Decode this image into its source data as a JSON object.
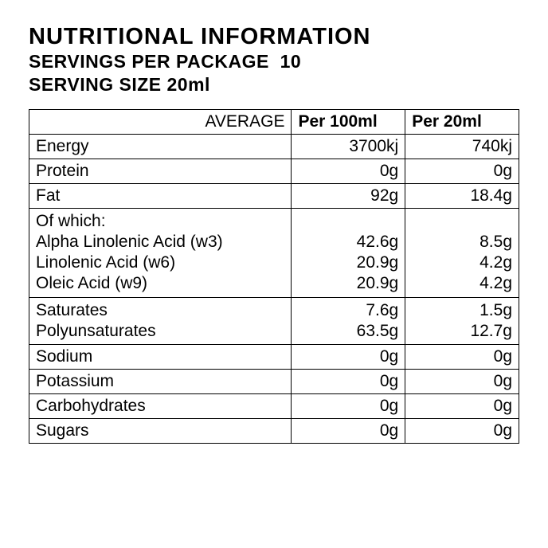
{
  "header": {
    "title": "NUTRITIONAL INFORMATION",
    "servings_per_package_label": "SERVINGS PER PACKAGE",
    "servings_per_package_value": "10",
    "serving_size_label": "SERVING SIZE",
    "serving_size_value": "20ml"
  },
  "columns": {
    "average": "AVERAGE",
    "per100": "Per 100ml",
    "per20": "Per 20ml"
  },
  "rows": [
    {
      "label": "Energy",
      "per100": "3700kj",
      "per20": "740kj"
    },
    {
      "label": "Protein",
      "per100": "0g",
      "per20": "0g"
    },
    {
      "label": "Fat",
      "per100": "92g",
      "per20": "18.4g"
    },
    {
      "label": "Of which:\nAlpha Linolenic Acid (w3)\nLinolenic Acid (w6)\nOleic Acid (w9)",
      "per100": "\n42.6g\n20.9g\n20.9g",
      "per20": "\n8.5g\n4.2g\n4.2g"
    },
    {
      "label": "Saturates\nPolyunsaturates",
      "per100": "7.6g\n63.5g",
      "per20": "1.5g\n12.7g"
    },
    {
      "label": "Sodium",
      "per100": "0g",
      "per20": "0g"
    },
    {
      "label": "Potassium",
      "per100": "0g",
      "per20": "0g"
    },
    {
      "label": "Carbohydrates",
      "per100": "0g",
      "per20": "0g"
    },
    {
      "label": "Sugars",
      "per100": "0g",
      "per20": "0g"
    }
  ],
  "style": {
    "background_color": "#ffffff",
    "text_color": "#000000",
    "border_color": "#000000",
    "title_fontsize": 29,
    "subtitle_fontsize": 23,
    "cell_fontsize": 21
  }
}
